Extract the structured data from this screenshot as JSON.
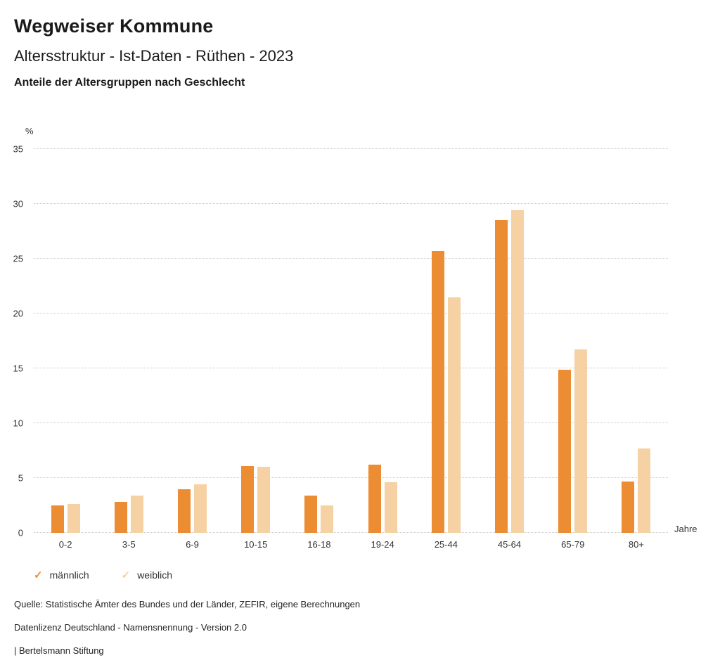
{
  "header": {
    "title": "Wegweiser Kommune",
    "subtitle": "Altersstruktur - Ist-Daten - Rüthen - 2023",
    "chart_heading": "Anteile der Altersgruppen nach Geschlecht"
  },
  "chart_data": {
    "type": "bar",
    "title": "Anteile der Altersgruppen nach Geschlecht",
    "categories": [
      "0-2",
      "3-5",
      "6-9",
      "10-15",
      "16-18",
      "19-24",
      "25-44",
      "45-64",
      "65-79",
      "80+"
    ],
    "series": [
      {
        "name": "männlich",
        "color": "#EC8C33",
        "values": [
          2.5,
          2.8,
          4.0,
          6.1,
          3.4,
          6.2,
          25.7,
          28.5,
          14.9,
          4.7
        ]
      },
      {
        "name": "weiblich",
        "color": "#F6D1A3",
        "values": [
          2.6,
          3.4,
          4.4,
          6.0,
          2.5,
          4.6,
          21.5,
          29.4,
          16.7,
          7.7
        ]
      }
    ],
    "xlabel": "Jahre",
    "ylabel": "%",
    "ylim": [
      0,
      35
    ],
    "yticks": [
      0,
      5,
      10,
      15,
      20,
      25,
      30,
      35
    ],
    "grid": true,
    "gridline_color": "#c9c9c9",
    "legend_position": "bottom"
  },
  "footer": {
    "source": "Quelle: Statistische Ämter des Bundes und der Länder, ZEFIR, eigene Berechnungen",
    "license": "Datenlizenz Deutschland - Namensnennung - Version 2.0",
    "attribution": "| Bertelsmann Stiftung"
  }
}
